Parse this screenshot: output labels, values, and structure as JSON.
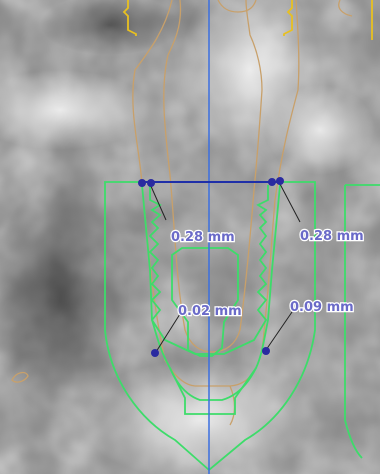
{
  "viewer": {
    "background": "ct-scan-grayscale",
    "colors": {
      "axis": "#3b6fe0",
      "implant_outline": "#3ddc6a",
      "bone_contour": "#c8a06a",
      "crown_marker": "#e8c020",
      "measure_point": "#2a2aa0",
      "label_text": "#6a6ac8"
    }
  },
  "measurements": [
    {
      "label": "0.28 mm"
    },
    {
      "label": "0.28 mm"
    },
    {
      "label": "0.02 mm"
    },
    {
      "label": "0.09 mm"
    }
  ]
}
